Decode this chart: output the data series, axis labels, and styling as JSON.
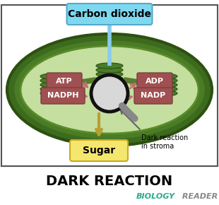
{
  "title": "DARK REACTION",
  "subtitle_bio": "BIOLOGY",
  "subtitle_reader": " READER",
  "co2_label": "Carbon dioxide",
  "sugar_label": "Sugar",
  "dark_reaction_label": "Dark reaction\nin stroma",
  "atp_label": "ATP",
  "nadph_label": "NADPH",
  "adp_label": "ADP",
  "nadp_label": "NADP",
  "bg_color": "#ffffff",
  "outer_ellipse_fc": "#3d6b1e",
  "outer_ellipse_ec": "#2d5010",
  "inner_ellipse_fc": "#c5dfa0",
  "inner_ellipse_ec": "#5a8c2a",
  "co2_box_color": "#7dd8f0",
  "co2_box_ec": "#55aacc",
  "co2_arrow_color": "#88ccee",
  "sugar_box_color": "#f5e66e",
  "sugar_box_ec": "#ccaa20",
  "sugar_arrow_color": "#b8a030",
  "label_box_color": "#a05050",
  "label_box_ec": "#784040",
  "label_text_color": "#ffffff",
  "circle_fill": "#d8d8d8",
  "circle_edge": "#111111",
  "handle_color": "#888888",
  "thylakoid_fc": "#4a7c2a",
  "thylakoid_ec": "#2d5010",
  "connect_color": "#5a7c30",
  "arrow_lr_color": "#c07070",
  "border_color": "#555555",
  "title_fontsize": 14,
  "subtitle_fontsize": 8,
  "co2_fontsize": 10,
  "sugar_fontsize": 10,
  "label_fontsize": 8,
  "annot_fontsize": 7
}
